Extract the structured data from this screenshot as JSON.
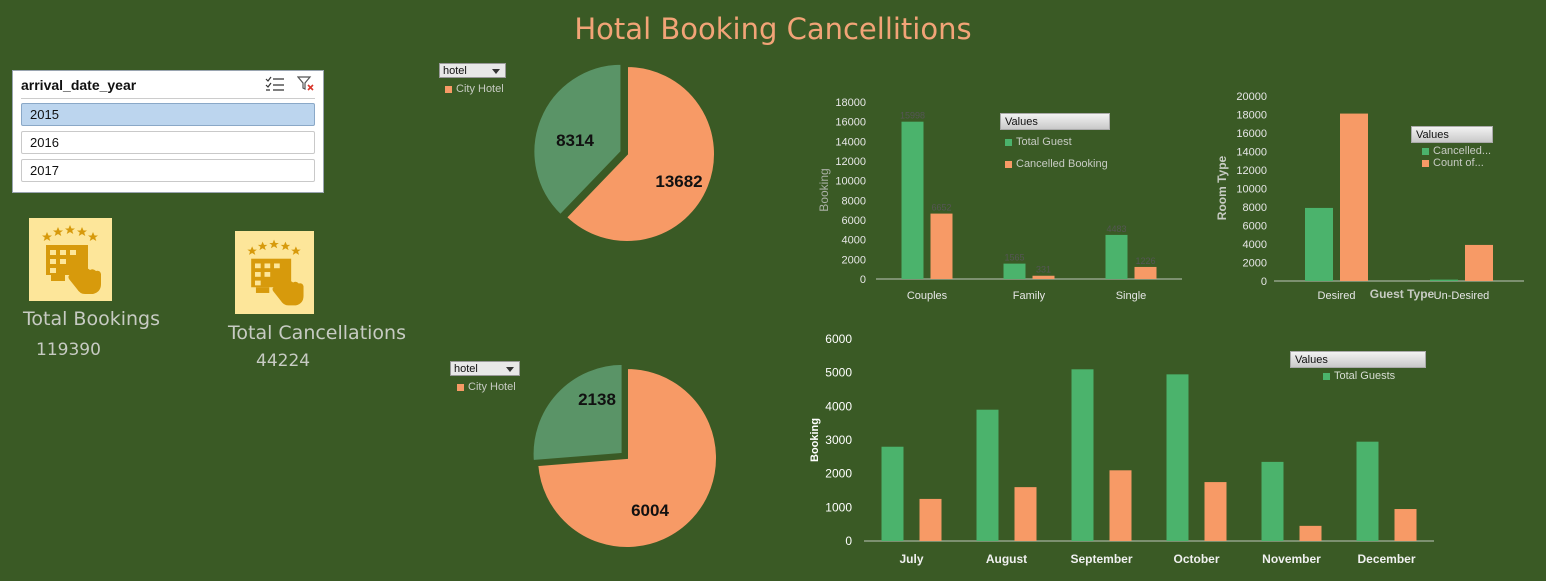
{
  "title": "Hotal Booking Cancellitions",
  "slicer": {
    "header": "arrival_date_year",
    "items": [
      "2015",
      "2016",
      "2017"
    ],
    "selected": "2015"
  },
  "kpis": {
    "total_bookings_label": "Total Bookings",
    "total_bookings_value": "119390",
    "total_cancellations_label": "Total Cancellations",
    "total_cancellations_value": "44224"
  },
  "icons": [
    "multiselect-icon",
    "clear-filter-icon",
    "hotel-booking-icon",
    "chevron-down-icon"
  ],
  "colors": {
    "background": "#3a5a25",
    "green": "#4bb36c",
    "orange": "#f79a66",
    "pie_green": "#5a9467",
    "title": "#f2a477"
  },
  "pie_filters": {
    "top": {
      "field": "hotel",
      "legend": "City Hotel"
    },
    "bottom": {
      "field": "hotel",
      "legend": "City Hotel"
    }
  },
  "guest_chart_legend": {
    "header": "Values",
    "items": [
      "Total Guest",
      "Cancelled Booking"
    ]
  },
  "room_chart_legend": {
    "header": "Values",
    "items": [
      "Cancelled...",
      "Count of..."
    ]
  },
  "month_chart_legend": {
    "header": "Values",
    "items": [
      "Total Guests"
    ]
  },
  "chart_data": [
    {
      "id": "pie-top",
      "type": "pie",
      "slices": [
        {
          "value": 13682,
          "color": "#f79a66",
          "label": "13682"
        },
        {
          "value": 8314,
          "color": "#5a9467",
          "label": "8314"
        }
      ]
    },
    {
      "id": "pie-bottom",
      "type": "pie",
      "slices": [
        {
          "value": 6004,
          "color": "#f79a66",
          "label": "6004"
        },
        {
          "value": 2138,
          "color": "#5a9467",
          "label": "2138"
        }
      ]
    },
    {
      "id": "guest-type",
      "type": "bar",
      "categories": [
        "Couples",
        "Family",
        "Single"
      ],
      "series": [
        {
          "name": "Total Guest",
          "values": [
            15998,
            1565,
            4483
          ],
          "color": "#4bb36c"
        },
        {
          "name": "Cancelled Booking",
          "values": [
            6652,
            331,
            1226
          ],
          "color": "#f79a66"
        }
      ],
      "ylabel": "Booking",
      "ylim": [
        0,
        18000
      ],
      "yticks": [
        0,
        2000,
        4000,
        6000,
        8000,
        10000,
        12000,
        14000,
        16000,
        18000
      ]
    },
    {
      "id": "room-type",
      "type": "bar",
      "categories": [
        "Desired",
        "Un-Desired"
      ],
      "series": [
        {
          "name": "Cancelled...",
          "values": [
            7900,
            150
          ],
          "color": "#4bb36c"
        },
        {
          "name": "Count of...",
          "values": [
            18100,
            3900
          ],
          "color": "#f79a66"
        }
      ],
      "xlabel": "Guest Type",
      "ylabel": "Room Type",
      "ylim": [
        0,
        20000
      ],
      "yticks": [
        0,
        2000,
        4000,
        6000,
        8000,
        10000,
        12000,
        14000,
        16000,
        18000,
        20000
      ]
    },
    {
      "id": "monthly",
      "type": "bar",
      "categories": [
        "July",
        "August",
        "September",
        "October",
        "November",
        "December"
      ],
      "series": [
        {
          "name": "Total Guests",
          "values": [
            2800,
            3900,
            5100,
            4950,
            2350,
            2950
          ],
          "color": "#4bb36c"
        },
        {
          "name": "",
          "values": [
            1250,
            1600,
            2100,
            1750,
            450,
            950
          ],
          "color": "#f79a66"
        }
      ],
      "ylabel": "Booking",
      "ylim": [
        0,
        6000
      ],
      "yticks": [
        0,
        1000,
        2000,
        3000,
        4000,
        5000,
        6000
      ]
    }
  ]
}
